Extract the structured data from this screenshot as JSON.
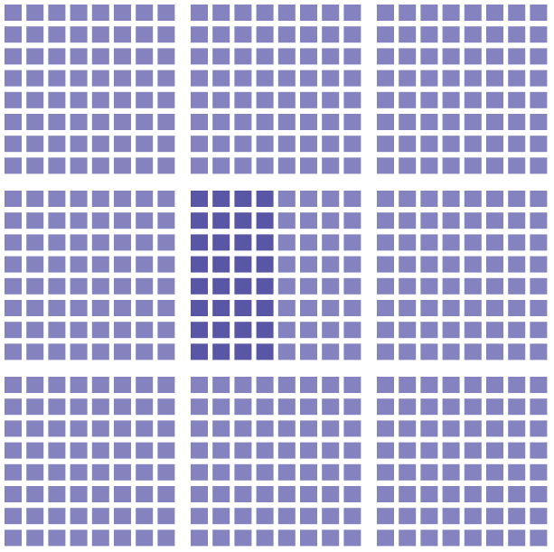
{
  "figure": {
    "type": "unit-grid",
    "blocks_per_row": 3,
    "blocks_per_column": 3,
    "cells_per_block_row": 8,
    "cells_per_block_column": 8,
    "total_cells": 576,
    "highlight": {
      "block_row": 1,
      "block_col": 1,
      "first_cell_col": 0,
      "last_cell_col": 3,
      "first_cell_row": 0,
      "last_cell_row": 7,
      "count": 32
    }
  },
  "colors": {
    "background": "#ffffff",
    "cell": "#8483c0",
    "highlight": "#5a56a6"
  }
}
